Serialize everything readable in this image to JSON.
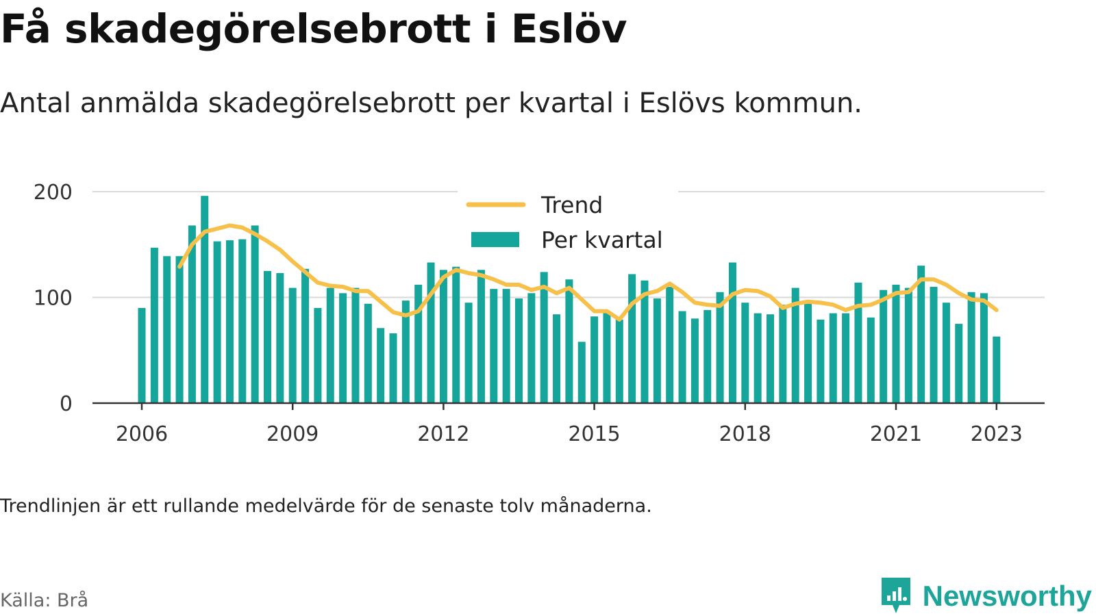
{
  "header": {
    "title": "Få skadegörelsebrott i Eslöv",
    "subtitle": "Antal anmälda skadegörelsebrott per kvartal i Eslövs kommun."
  },
  "footer": {
    "note": "Trendlinjen är ett rullande medelvärde för de senaste tolv månaderna.",
    "source": "Källa: Brå",
    "brand": "Newsworthy",
    "brand_icon": "newsworthy-logo-icon"
  },
  "colors": {
    "bar": "#15a59a",
    "trend": "#f7c04a",
    "grid": "#d9d9d9",
    "axis": "#333333",
    "brand": "#1ea59a"
  },
  "chart_data": {
    "type": "bar",
    "x_unit": "quarter",
    "x_start": "2006 Q1",
    "xlabel": "",
    "ylabel": "",
    "ylim": [
      0,
      200
    ],
    "yticks": [
      0,
      100,
      200
    ],
    "xticks": [
      "2006",
      "2009",
      "2012",
      "2015",
      "2018",
      "2021",
      "2023"
    ],
    "grid": true,
    "legend_position": "top-center",
    "legend": [
      "Trend",
      "Per kvartal"
    ],
    "series": [
      {
        "name": "Per kvartal",
        "type": "bar",
        "quarters": [
          "2006 Q1",
          "2006 Q2",
          "2006 Q3",
          "2006 Q4",
          "2007 Q1",
          "2007 Q2",
          "2007 Q3",
          "2007 Q4",
          "2008 Q1",
          "2008 Q2",
          "2008 Q3",
          "2008 Q4",
          "2009 Q1",
          "2009 Q2",
          "2009 Q3",
          "2009 Q4",
          "2010 Q1",
          "2010 Q2",
          "2010 Q3",
          "2010 Q4",
          "2011 Q1",
          "2011 Q2",
          "2011 Q3",
          "2011 Q4",
          "2012 Q1",
          "2012 Q2",
          "2012 Q3",
          "2012 Q4",
          "2013 Q1",
          "2013 Q2",
          "2013 Q3",
          "2013 Q4",
          "2014 Q1",
          "2014 Q2",
          "2014 Q3",
          "2014 Q4",
          "2015 Q1",
          "2015 Q2",
          "2015 Q3",
          "2015 Q4",
          "2016 Q1",
          "2016 Q2",
          "2016 Q3",
          "2016 Q4",
          "2017 Q1",
          "2017 Q2",
          "2017 Q3",
          "2017 Q4",
          "2018 Q1",
          "2018 Q2",
          "2018 Q3",
          "2018 Q4",
          "2019 Q1",
          "2019 Q2",
          "2019 Q3",
          "2019 Q4",
          "2020 Q1",
          "2020 Q2",
          "2020 Q3",
          "2020 Q4",
          "2021 Q1",
          "2021 Q2",
          "2021 Q3",
          "2021 Q4",
          "2022 Q1",
          "2022 Q2",
          "2022 Q3",
          "2022 Q4",
          "2023 Q1"
        ],
        "values": [
          90,
          147,
          139,
          139,
          168,
          196,
          153,
          154,
          155,
          168,
          125,
          123,
          109,
          127,
          90,
          109,
          104,
          109,
          94,
          71,
          66,
          97,
          112,
          133,
          126,
          129,
          95,
          126,
          108,
          108,
          99,
          104,
          124,
          84,
          117,
          58,
          82,
          87,
          79,
          122,
          116,
          99,
          110,
          87,
          80,
          88,
          105,
          133,
          95,
          85,
          84,
          93,
          109,
          94,
          79,
          85,
          85,
          114,
          81,
          107,
          112,
          109,
          130,
          110,
          95,
          75,
          105,
          104,
          63
        ]
      },
      {
        "name": "Trend",
        "type": "line",
        "start_quarter": "2006 Q4",
        "values": [
          129,
          150,
          162,
          165,
          168,
          166,
          160,
          153,
          145,
          134,
          124,
          114,
          111,
          110,
          106,
          106,
          96,
          86,
          83,
          87,
          103,
          119,
          126,
          123,
          121,
          117,
          112,
          112,
          107,
          110,
          104,
          109,
          98,
          87,
          87,
          79,
          94,
          103,
          106,
          113,
          105,
          95,
          93,
          92,
          103,
          107,
          106,
          101,
          90,
          94,
          96,
          95,
          93,
          88,
          92,
          93,
          98,
          104,
          105,
          117,
          117,
          112,
          104,
          98,
          97,
          88
        ]
      }
    ]
  }
}
